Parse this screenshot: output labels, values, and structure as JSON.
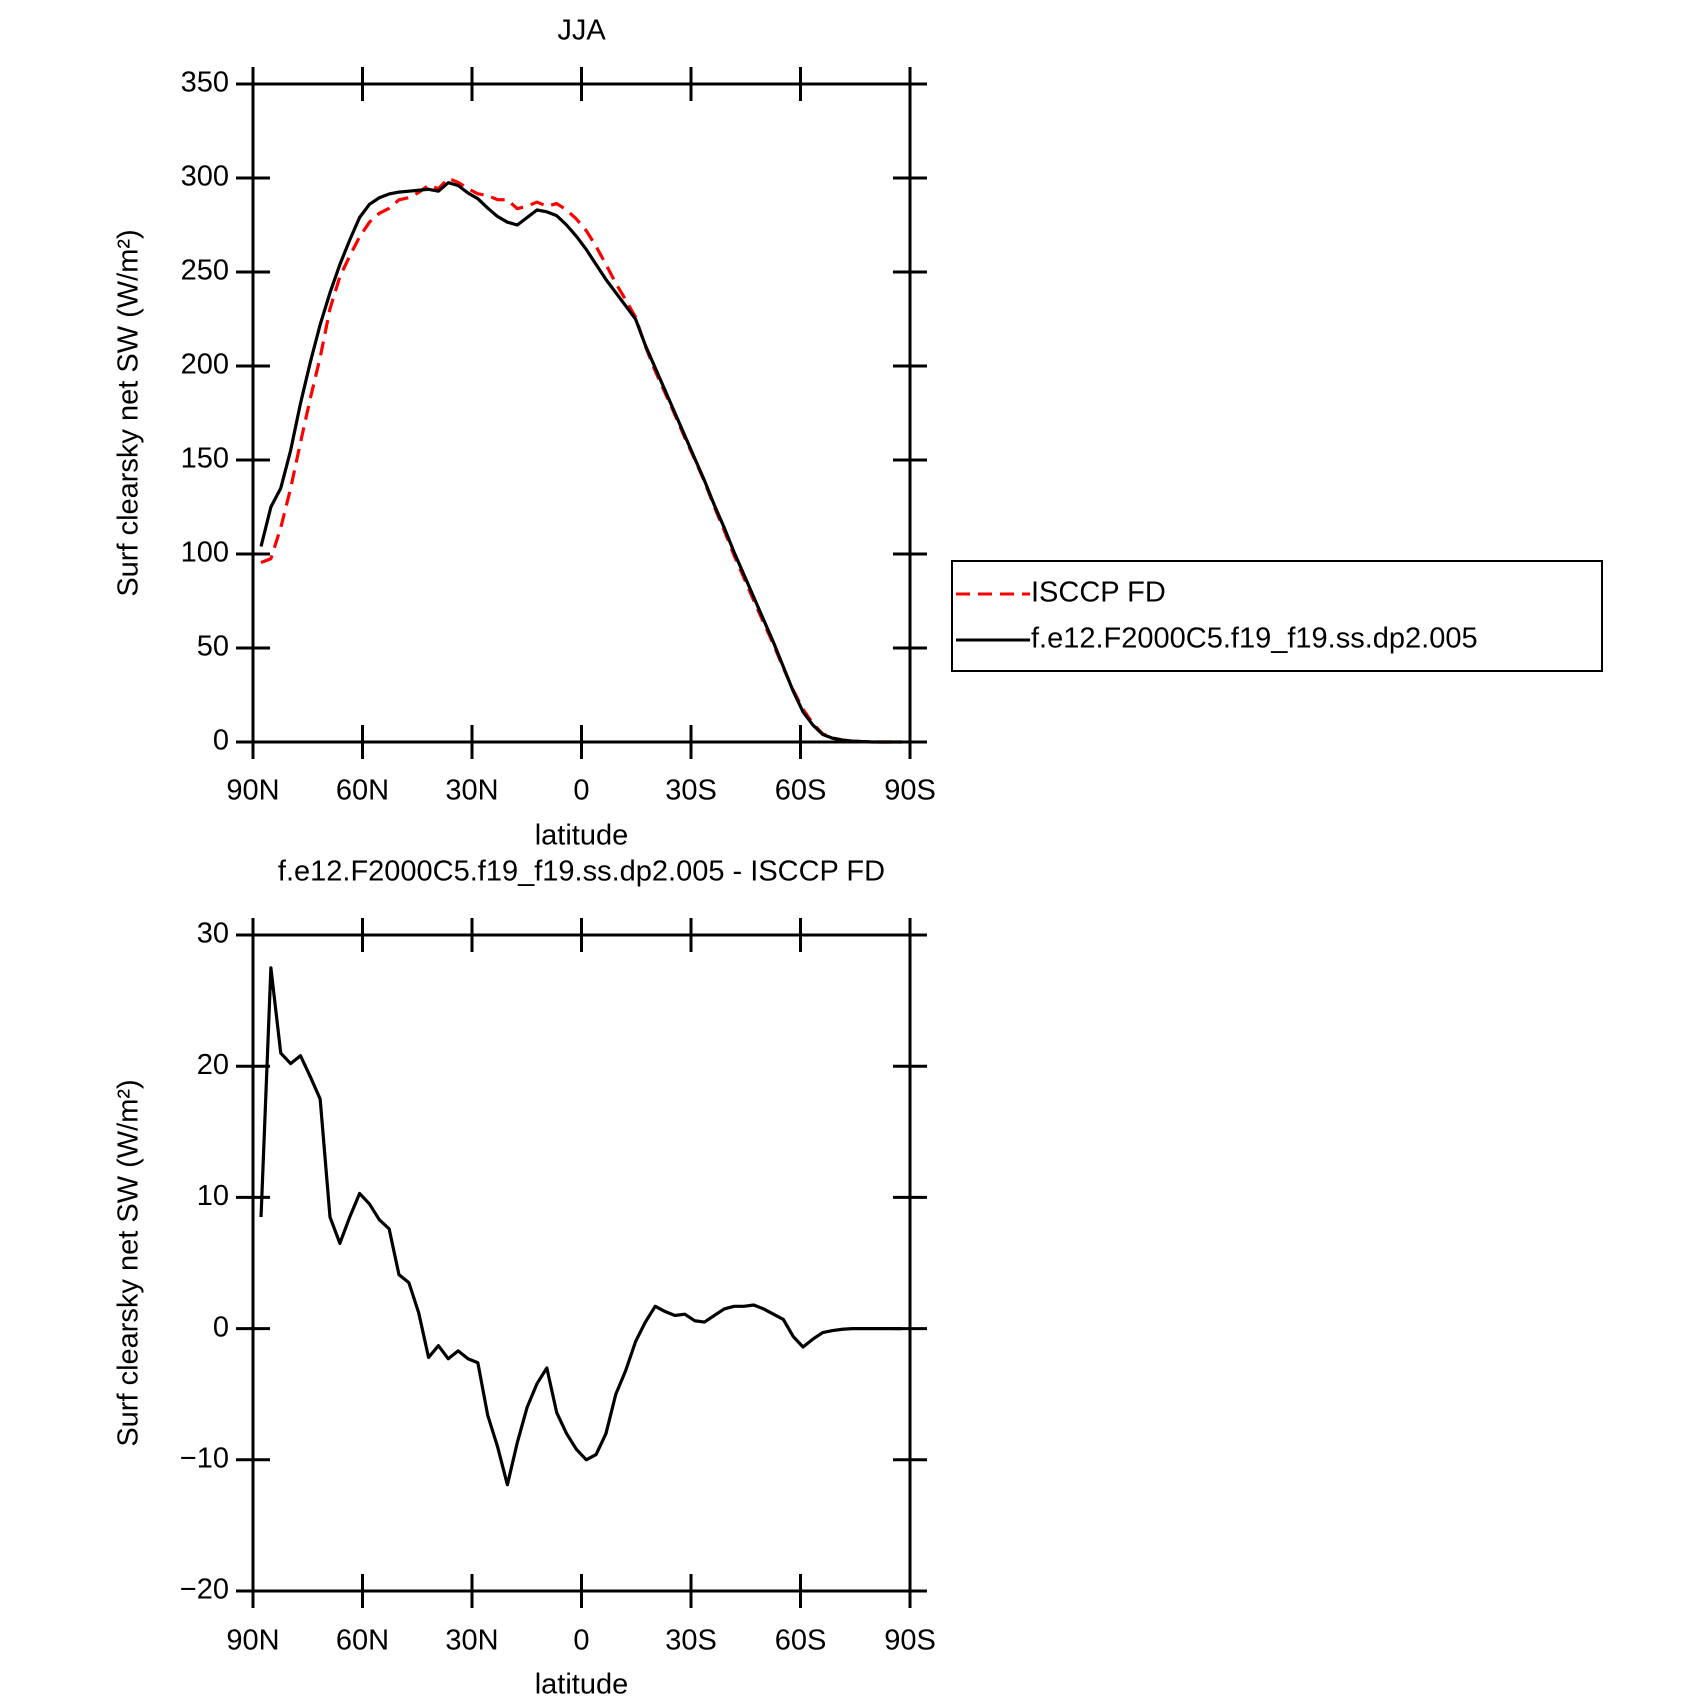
{
  "chart_data": [
    {
      "type": "line",
      "title": "JJA",
      "xlabel": "latitude",
      "ylabel": "Surf clearsky net SW (W/m²)",
      "x": [
        87.8,
        85.1,
        82.4,
        79.7,
        77.0,
        74.3,
        71.6,
        68.9,
        66.2,
        63.5,
        60.8,
        58.1,
        55.4,
        52.7,
        50.0,
        47.3,
        44.6,
        41.9,
        39.2,
        36.5,
        33.8,
        31.1,
        28.4,
        25.7,
        23.0,
        20.3,
        17.6,
        14.9,
        12.2,
        9.5,
        6.8,
        4.1,
        1.4,
        -1.3,
        -4.0,
        -6.7,
        -9.4,
        -12.1,
        -14.8,
        -17.5,
        -20.2,
        -22.9,
        -25.6,
        -28.3,
        -31.0,
        -33.7,
        -36.4,
        -39.1,
        -41.8,
        -44.5,
        -47.2,
        -49.9,
        -52.6,
        -55.3,
        -58.0,
        -60.7,
        -63.4,
        -66.1,
        -68.8,
        -71.5,
        -74.2,
        -76.9,
        -79.6,
        -82.3,
        -85.0,
        -87.7
      ],
      "series": [
        {
          "name": "ISCCP FD",
          "color": "#ff0000",
          "dashed": true,
          "values": [
            95.5,
            97.5,
            114,
            134.8,
            159.2,
            182.8,
            204.5,
            230.5,
            247.5,
            258.5,
            268.7,
            276.5,
            281.2,
            283.9,
            288.4,
            289.5,
            292.3,
            296.2,
            294.3,
            299.8,
            297.7,
            294.3,
            291.6,
            290.6,
            288.5,
            288.4,
            283.7,
            285,
            287.2,
            285,
            286.4,
            283,
            278.2,
            272,
            263.6,
            254,
            244,
            235.2,
            226,
            210.5,
            197.3,
            185.7,
            174,
            161.9,
            150.4,
            138.5,
            125,
            112.5,
            99.3,
            87.3,
            75.2,
            63.5,
            51.9,
            39.3,
            27.6,
            17.4,
            9.8,
            4.3,
            2.2,
            1,
            0.5,
            0.2,
            0,
            0,
            0,
            0
          ]
        },
        {
          "name": "f.e12.F2000C5.f19_f19.ss.dp2.005",
          "color": "#000000",
          "dashed": false,
          "values": [
            104,
            125,
            135,
            155,
            180,
            202,
            222,
            239,
            254,
            267,
            279,
            286,
            289.5,
            291.5,
            292.5,
            293,
            293.5,
            294,
            293,
            297.5,
            296,
            292,
            289,
            284,
            279.5,
            276.5,
            275,
            279,
            283,
            282,
            280,
            275,
            269,
            262,
            254,
            246,
            239,
            232,
            225,
            211,
            199,
            187,
            175,
            163,
            151,
            139,
            126,
            114,
            101,
            89,
            77,
            65,
            53,
            40,
            27,
            16,
            9,
            4,
            2,
            1,
            0.5,
            0.2,
            0,
            0,
            0,
            0
          ]
        }
      ],
      "xlim": [
        90,
        -90
      ],
      "xticks": [
        {
          "value": 90,
          "label": "90N"
        },
        {
          "value": 60,
          "label": "60N"
        },
        {
          "value": 30,
          "label": "30N"
        },
        0,
        {
          "value": -30,
          "label": "30S"
        },
        {
          "value": -60,
          "label": "60S"
        },
        {
          "value": -90,
          "label": "90S"
        }
      ],
      "ylim": [
        0,
        350
      ],
      "yticks": [
        0,
        50,
        100,
        150,
        200,
        250,
        300,
        350
      ],
      "legend": "right"
    },
    {
      "type": "line",
      "title": "f.e12.F2000C5.f19_f19.ss.dp2.005 - ISCCP FD",
      "xlabel": "latitude",
      "ylabel": "Surf clearsky net SW (W/m²)",
      "x": [
        87.8,
        85.1,
        82.4,
        79.7,
        77.0,
        74.3,
        71.6,
        68.9,
        66.2,
        63.5,
        60.8,
        58.1,
        55.4,
        52.7,
        50.0,
        47.3,
        44.6,
        41.9,
        39.2,
        36.5,
        33.8,
        31.1,
        28.4,
        25.7,
        23.0,
        20.3,
        17.6,
        14.9,
        12.2,
        9.5,
        6.8,
        4.1,
        1.4,
        -1.3,
        -4.0,
        -6.7,
        -9.4,
        -12.1,
        -14.8,
        -17.5,
        -20.2,
        -22.9,
        -25.6,
        -28.3,
        -31.0,
        -33.7,
        -36.4,
        -39.1,
        -41.8,
        -44.5,
        -47.2,
        -49.9,
        -52.6,
        -55.3,
        -58.0,
        -60.7,
        -63.4,
        -66.1,
        -68.8,
        -71.5,
        -74.2,
        -76.9,
        -79.6,
        -82.3,
        -85.0,
        -87.7
      ],
      "color": "#000000",
      "values": [
        8.5,
        27.5,
        21,
        20.2,
        20.8,
        19.2,
        17.5,
        8.5,
        6.5,
        8.5,
        10.3,
        9.5,
        8.3,
        7.6,
        4.1,
        3.5,
        1.2,
        -2.2,
        -1.3,
        -2.3,
        -1.7,
        -2.3,
        -2.6,
        -6.6,
        -9,
        -11.9,
        -8.7,
        -6,
        -4.2,
        -3,
        -6.4,
        -8,
        -9.2,
        -10,
        -9.6,
        -8,
        -5,
        -3.2,
        -1,
        0.5,
        1.7,
        1.3,
        1.0,
        1.1,
        0.6,
        0.5,
        1.0,
        1.5,
        1.7,
        1.7,
        1.8,
        1.5,
        1.1,
        0.7,
        -0.6,
        -1.4,
        -0.8,
        -0.3,
        -0.15,
        -0.05,
        0,
        0,
        0,
        0,
        0,
        0
      ],
      "xlim": [
        90,
        -90
      ],
      "xticks": [
        {
          "value": 90,
          "label": "90N"
        },
        {
          "value": 60,
          "label": "60N"
        },
        {
          "value": 30,
          "label": "30N"
        },
        0,
        {
          "value": -30,
          "label": "30S"
        },
        {
          "value": -60,
          "label": "60S"
        },
        {
          "value": -90,
          "label": "90S"
        }
      ],
      "ylim": [
        -20,
        30
      ],
      "yticks": [
        {
          "value": -20,
          "label": "−20"
        },
        {
          "value": -10,
          "label": "−10"
        },
        0,
        10,
        20,
        30
      ]
    }
  ]
}
